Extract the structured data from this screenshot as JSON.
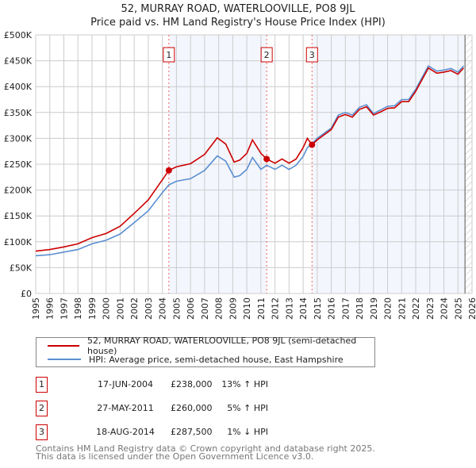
{
  "chart_data": {
    "type": "line",
    "title": "52, MURRAY ROAD, WATERLOOVILLE, PO8 9JL",
    "subtitle": "Price paid vs. HM Land Registry's House Price Index (HPI)",
    "xlim": [
      1995,
      2026
    ],
    "ylim": [
      0,
      500000
    ],
    "x_ticks": [
      "1995",
      "1996",
      "1997",
      "1998",
      "1999",
      "2000",
      "2001",
      "2002",
      "2003",
      "2004",
      "2005",
      "2006",
      "2007",
      "2008",
      "2009",
      "2010",
      "2011",
      "2012",
      "2013",
      "2014",
      "2015",
      "2016",
      "2017",
      "2018",
      "2019",
      "2020",
      "2021",
      "2022",
      "2023",
      "2024",
      "2025",
      "2026"
    ],
    "y_ticks": [
      {
        "v": 0,
        "label": "£0"
      },
      {
        "v": 50000,
        "label": "£50K"
      },
      {
        "v": 100000,
        "label": "£100K"
      },
      {
        "v": 150000,
        "label": "£150K"
      },
      {
        "v": 200000,
        "label": "£200K"
      },
      {
        "v": 250000,
        "label": "£250K"
      },
      {
        "v": 300000,
        "label": "£300K"
      },
      {
        "v": 350000,
        "label": "£350K"
      },
      {
        "v": 400000,
        "label": "£400K"
      },
      {
        "v": 450000,
        "label": "£450K"
      },
      {
        "v": 500000,
        "label": "£500K"
      }
    ],
    "grid": true,
    "x": [
      1995.0,
      1996.0,
      1997.0,
      1998.0,
      1999.0,
      2000.0,
      2001.0,
      2002.0,
      2003.0,
      2004.0,
      2004.46,
      2005.0,
      2006.0,
      2007.0,
      2007.9,
      2008.5,
      2009.1,
      2009.5,
      2010.0,
      2010.4,
      2011.0,
      2011.41,
      2012.0,
      2012.5,
      2013.0,
      2013.5,
      2014.0,
      2014.3,
      2014.63,
      2015.0,
      2016.0,
      2016.5,
      2017.0,
      2017.5,
      2018.0,
      2018.5,
      2019.0,
      2019.5,
      2020.0,
      2020.5,
      2021.0,
      2021.5,
      2022.0,
      2022.5,
      2022.9,
      2023.5,
      2024.0,
      2024.5,
      2025.0,
      2025.4
    ],
    "series": [
      {
        "name": "52, MURRAY ROAD, WATERLOOVILLE, PO8 9JL (semi-detached house)",
        "color": "#cc0000",
        "values": [
          82,
          85,
          90,
          96,
          108,
          116,
          130,
          155,
          181,
          220,
          238,
          245,
          251,
          269,
          301,
          289,
          254,
          258,
          271,
          297,
          271,
          260,
          252,
          260,
          252,
          260,
          282,
          300,
          287.5,
          297,
          317,
          341,
          346,
          341,
          356,
          361,
          345,
          351,
          358,
          359,
          371,
          371,
          391,
          416,
          436,
          426,
          428,
          431,
          424,
          436
        ]
      },
      {
        "name": "HPI: Average price, semi-detached house, East Hampshire",
        "color": "#5b8fd0",
        "values": [
          73,
          75,
          80,
          85,
          96,
          103,
          115,
          137,
          160,
          195,
          210,
          217,
          222,
          238,
          266,
          256,
          225,
          228,
          240,
          263,
          240,
          248,
          240,
          248,
          240,
          248,
          265,
          282,
          290,
          300,
          320,
          345,
          350,
          345,
          360,
          365,
          348,
          355,
          362,
          363,
          375,
          375,
          395,
          420,
          440,
          430,
          432,
          435,
          428,
          440
        ]
      }
    ],
    "value_units": "thousands GBP",
    "sales": [
      {
        "id": "1",
        "x": 2004.46,
        "value": 238000,
        "date": "17-JUN-2004",
        "price": "£238,000",
        "hpi": "13% ↑ HPI"
      },
      {
        "id": "2",
        "x": 2011.41,
        "value": 260000,
        "date": "27-MAY-2011",
        "price": "£260,000",
        "hpi": "5% ↑ HPI"
      },
      {
        "id": "3",
        "x": 2014.63,
        "value": 287500,
        "date": "18-AUG-2014",
        "price": "£287,500",
        "hpi": "1% ↓ HPI"
      }
    ],
    "forecast_start": 2025.5,
    "legend_placement": "below"
  },
  "footer": {
    "line1": "Contains HM Land Registry data © Crown copyright and database right 2025.",
    "line2": "This data is licensed under the Open Government Licence v3.0."
  }
}
